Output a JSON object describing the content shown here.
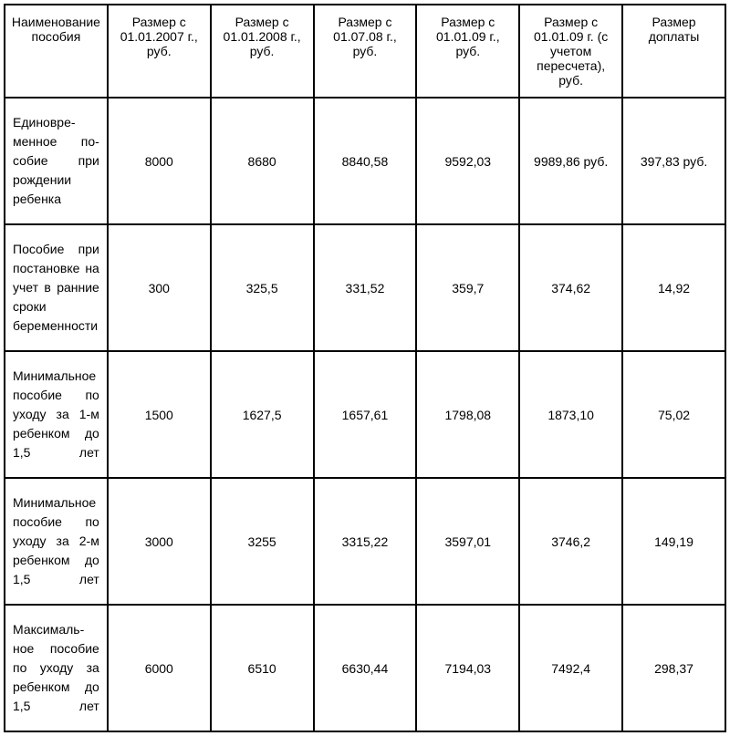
{
  "table": {
    "columns": [
      "Наимено­вание пособия",
      "Размер с 01.01.2007 г., руб.",
      "Размер с 01.01.2008 г., руб.",
      "Размер с 01.07.08 г., руб.",
      "Размер с 01.01.09 г., руб.",
      "Размер с 01.01.09 г. (с учетом пересчета), руб.",
      "Размер доплаты"
    ],
    "rows": [
      {
        "label": "Единовре­менное по­собие при рождении ребенка",
        "values": [
          "8000",
          "8680",
          "8840,58",
          "9592,03",
          "9989,86 руб.",
          "397,83 руб."
        ]
      },
      {
        "label": "Пособие при постановке на учет в ранние сро­ки беремен­ности",
        "values": [
          "300",
          "325,5",
          "331,52",
          "359,7",
          "374,62",
          "14,92"
        ]
      },
      {
        "label": "Минималь­ное пособие по уходу за 1-м ребенком до 1,5 лет",
        "values": [
          "1500",
          "1627,5",
          "1657,61",
          "1798,08",
          "1873,10",
          "75,02"
        ]
      },
      {
        "label": "Минималь­ное посо­бие по уходу за 2-м ре­бенком до 1,5 лет",
        "values": [
          "3000",
          "3255",
          "3315,22",
          "3597,01",
          "3746,2",
          "149,19"
        ]
      },
      {
        "label": "Максималь­ное посо­бие по уходу за ребен­ком до 1,5 лет",
        "values": [
          "6000",
          "6510",
          "6630,44",
          "7194,03",
          "7492,4",
          "298,37"
        ]
      }
    ],
    "border_color": "#000000",
    "background_color": "#ffffff",
    "font_size": 14,
    "header_font_size": 14
  }
}
